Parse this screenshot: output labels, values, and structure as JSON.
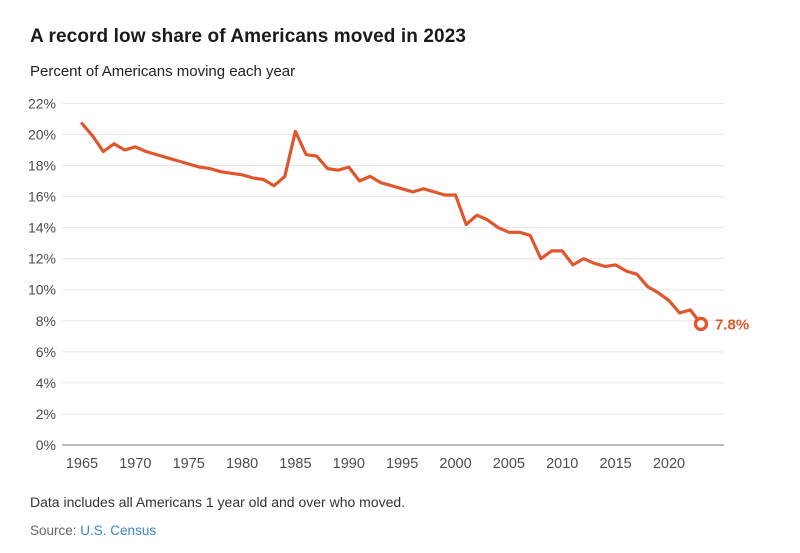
{
  "page": {
    "title": "A record low share of Americans moved in 2023",
    "subtitle": "Percent of Americans moving each year",
    "note": "Data includes all Americans 1 year old and over who moved.",
    "source_label": "Source:",
    "source_link_text": "U.S. Census"
  },
  "colors": {
    "line": "#e0572e",
    "endpoint_label": "#e0572e",
    "gridline": "#e7e7e7",
    "zero_axis": "#a8a8a8",
    "axis_text": "#4d4d4d",
    "title_text": "#1a1a1a",
    "link_blue": "#3e86c4"
  },
  "chart_data": {
    "type": "line",
    "title": "A record low share of Americans moved in 2023",
    "subtitle": "Percent of Americans moving each year",
    "series_name": "Percent of Americans moving each year",
    "x": [
      1965,
      1966,
      1967,
      1968,
      1969,
      1970,
      1971,
      1972,
      1973,
      1974,
      1975,
      1976,
      1977,
      1978,
      1979,
      1980,
      1981,
      1982,
      1983,
      1984,
      1985,
      1986,
      1987,
      1988,
      1989,
      1990,
      1991,
      1992,
      1993,
      1994,
      1995,
      1996,
      1997,
      1998,
      1999,
      2000,
      2001,
      2002,
      2003,
      2004,
      2005,
      2006,
      2007,
      2008,
      2009,
      2010,
      2011,
      2012,
      2013,
      2014,
      2015,
      2016,
      2017,
      2018,
      2019,
      2020,
      2021,
      2022,
      2023
    ],
    "values": [
      20.7,
      19.9,
      18.9,
      19.4,
      19.0,
      19.2,
      18.9,
      18.7,
      18.5,
      18.3,
      18.1,
      17.9,
      17.8,
      17.6,
      17.5,
      17.4,
      17.2,
      17.1,
      16.7,
      17.3,
      20.2,
      18.7,
      18.6,
      17.8,
      17.7,
      17.9,
      17.0,
      17.3,
      16.9,
      16.7,
      16.5,
      16.3,
      16.5,
      16.3,
      16.1,
      16.1,
      14.2,
      14.8,
      14.5,
      14.0,
      13.7,
      13.7,
      13.5,
      12.0,
      12.5,
      12.5,
      11.6,
      12.0,
      11.7,
      11.5,
      11.6,
      11.2,
      11.0,
      10.2,
      9.8,
      9.3,
      8.5,
      8.7,
      7.8
    ],
    "xlabel": "",
    "ylabel": "",
    "ylim": [
      0,
      22
    ],
    "ytick_step": 2,
    "ytick_labels": [
      "0%",
      "2%",
      "4%",
      "6%",
      "8%",
      "10%",
      "12%",
      "14%",
      "16%",
      "18%",
      "20%",
      "22%"
    ],
    "xticks": [
      1965,
      1970,
      1975,
      1980,
      1985,
      1990,
      1995,
      2000,
      2005,
      2010,
      2015,
      2020
    ],
    "grid": "horizontal",
    "legend": "none",
    "end_label": "7.8%",
    "line_color": "#e0572e"
  }
}
